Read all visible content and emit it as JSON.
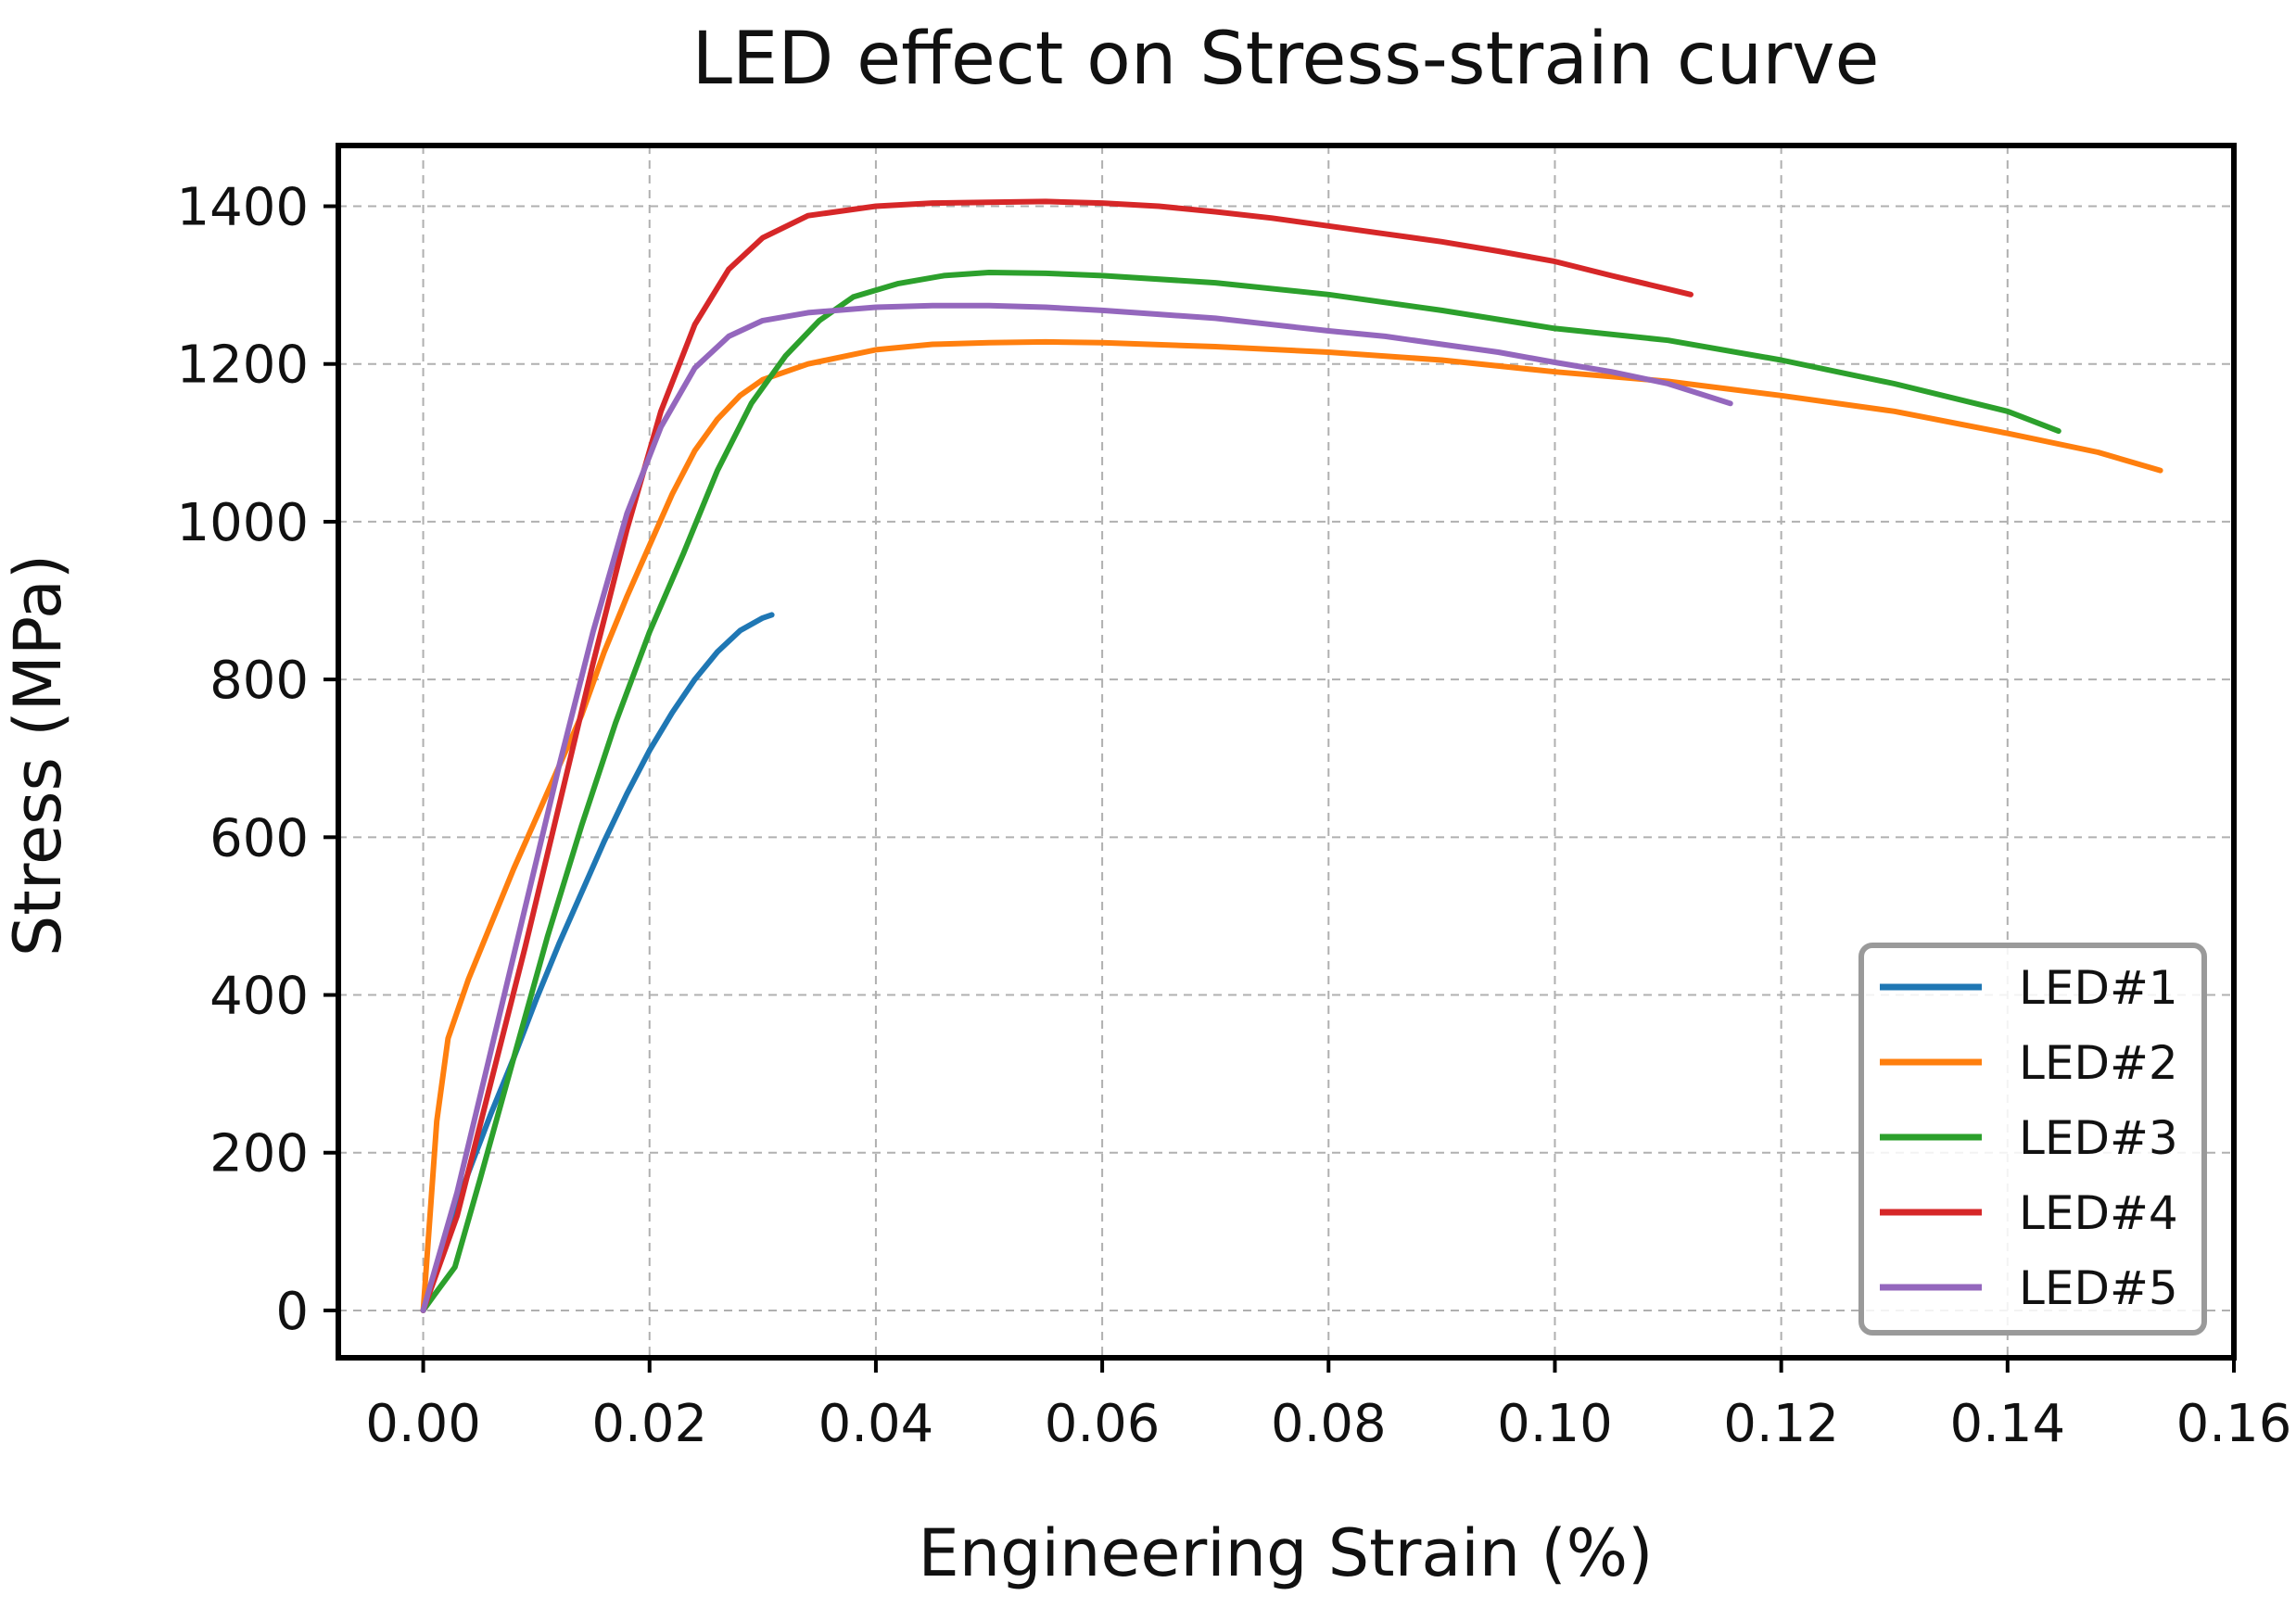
{
  "chart_data": {
    "type": "line",
    "title": "LED effect on Stress-strain curve",
    "xlabel": "Engineering Strain (%)",
    "ylabel": "Stress (MPa)",
    "xlim": [
      -0.0075,
      0.16
    ],
    "ylim": [
      -60,
      1477
    ],
    "xticks": [
      0.0,
      0.02,
      0.04,
      0.06,
      0.08,
      0.1,
      0.12,
      0.14,
      0.16
    ],
    "xtick_labels": [
      "0.00",
      "0.02",
      "0.04",
      "0.06",
      "0.08",
      "0.10",
      "0.12",
      "0.14",
      "0.16"
    ],
    "yticks": [
      0,
      200,
      400,
      600,
      800,
      1000,
      1200,
      1400
    ],
    "ytick_labels": [
      "0",
      "200",
      "400",
      "600",
      "800",
      "1000",
      "1200",
      "1400"
    ],
    "grid": true,
    "legend_position": "lower-right",
    "series": [
      {
        "name": "LED#1",
        "color": "#1f77b4",
        "points": [
          [
            0.0,
            0
          ],
          [
            0.002,
            95
          ],
          [
            0.004,
            175
          ],
          [
            0.006,
            250
          ],
          [
            0.008,
            320
          ],
          [
            0.01,
            395
          ],
          [
            0.012,
            465
          ],
          [
            0.014,
            530
          ],
          [
            0.016,
            595
          ],
          [
            0.018,
            655
          ],
          [
            0.02,
            710
          ],
          [
            0.022,
            758
          ],
          [
            0.024,
            800
          ],
          [
            0.026,
            835
          ],
          [
            0.028,
            862
          ],
          [
            0.03,
            878
          ],
          [
            0.0308,
            882
          ]
        ]
      },
      {
        "name": "LED#2",
        "color": "#ff7f0e",
        "points": [
          [
            0.0,
            0
          ],
          [
            0.0012,
            240
          ],
          [
            0.0022,
            345
          ],
          [
            0.004,
            420
          ],
          [
            0.006,
            490
          ],
          [
            0.008,
            560
          ],
          [
            0.01,
            625
          ],
          [
            0.012,
            690
          ],
          [
            0.014,
            755
          ],
          [
            0.016,
            835
          ],
          [
            0.018,
            905
          ],
          [
            0.02,
            970
          ],
          [
            0.022,
            1035
          ],
          [
            0.024,
            1090
          ],
          [
            0.026,
            1130
          ],
          [
            0.028,
            1160
          ],
          [
            0.03,
            1180
          ],
          [
            0.034,
            1200
          ],
          [
            0.04,
            1218
          ],
          [
            0.045,
            1225
          ],
          [
            0.05,
            1227
          ],
          [
            0.055,
            1228
          ],
          [
            0.06,
            1227
          ],
          [
            0.07,
            1222
          ],
          [
            0.08,
            1215
          ],
          [
            0.09,
            1205
          ],
          [
            0.1,
            1190
          ],
          [
            0.11,
            1178
          ],
          [
            0.12,
            1160
          ],
          [
            0.13,
            1140
          ],
          [
            0.14,
            1112
          ],
          [
            0.148,
            1088
          ],
          [
            0.1535,
            1065
          ]
        ]
      },
      {
        "name": "LED#3",
        "color": "#2ca02c",
        "points": [
          [
            0.0,
            0
          ],
          [
            0.001,
            20
          ],
          [
            0.0028,
            55
          ],
          [
            0.005,
            165
          ],
          [
            0.008,
            320
          ],
          [
            0.011,
            475
          ],
          [
            0.014,
            615
          ],
          [
            0.017,
            745
          ],
          [
            0.02,
            860
          ],
          [
            0.023,
            960
          ],
          [
            0.026,
            1065
          ],
          [
            0.029,
            1150
          ],
          [
            0.032,
            1210
          ],
          [
            0.035,
            1255
          ],
          [
            0.038,
            1285
          ],
          [
            0.042,
            1302
          ],
          [
            0.046,
            1312
          ],
          [
            0.05,
            1316
          ],
          [
            0.055,
            1315
          ],
          [
            0.06,
            1312
          ],
          [
            0.07,
            1303
          ],
          [
            0.08,
            1288
          ],
          [
            0.09,
            1268
          ],
          [
            0.1,
            1245
          ],
          [
            0.11,
            1230
          ],
          [
            0.12,
            1205
          ],
          [
            0.13,
            1175
          ],
          [
            0.14,
            1140
          ],
          [
            0.1445,
            1115
          ]
        ]
      },
      {
        "name": "LED#4",
        "color": "#d62728",
        "points": [
          [
            0.0,
            0
          ],
          [
            0.003,
            120
          ],
          [
            0.006,
            290
          ],
          [
            0.009,
            460
          ],
          [
            0.012,
            640
          ],
          [
            0.015,
            820
          ],
          [
            0.018,
            990
          ],
          [
            0.021,
            1140
          ],
          [
            0.024,
            1250
          ],
          [
            0.027,
            1320
          ],
          [
            0.03,
            1360
          ],
          [
            0.034,
            1388
          ],
          [
            0.04,
            1400
          ],
          [
            0.045,
            1404
          ],
          [
            0.05,
            1405
          ],
          [
            0.055,
            1406
          ],
          [
            0.06,
            1404
          ],
          [
            0.065,
            1400
          ],
          [
            0.07,
            1393
          ],
          [
            0.075,
            1385
          ],
          [
            0.08,
            1375
          ],
          [
            0.085,
            1365
          ],
          [
            0.09,
            1355
          ],
          [
            0.095,
            1343
          ],
          [
            0.1,
            1330
          ],
          [
            0.105,
            1312
          ],
          [
            0.11,
            1295
          ],
          [
            0.112,
            1288
          ]
        ]
      },
      {
        "name": "LED#5",
        "color": "#9467bd",
        "points": [
          [
            0.0,
            0
          ],
          [
            0.003,
            150
          ],
          [
            0.006,
            330
          ],
          [
            0.009,
            510
          ],
          [
            0.012,
            690
          ],
          [
            0.015,
            860
          ],
          [
            0.018,
            1010
          ],
          [
            0.021,
            1120
          ],
          [
            0.024,
            1195
          ],
          [
            0.027,
            1235
          ],
          [
            0.03,
            1255
          ],
          [
            0.034,
            1265
          ],
          [
            0.04,
            1272
          ],
          [
            0.045,
            1274
          ],
          [
            0.05,
            1274
          ],
          [
            0.055,
            1272
          ],
          [
            0.06,
            1268
          ],
          [
            0.065,
            1263
          ],
          [
            0.07,
            1258
          ],
          [
            0.075,
            1250
          ],
          [
            0.08,
            1242
          ],
          [
            0.085,
            1235
          ],
          [
            0.09,
            1225
          ],
          [
            0.095,
            1215
          ],
          [
            0.1,
            1202
          ],
          [
            0.105,
            1190
          ],
          [
            0.11,
            1175
          ],
          [
            0.1155,
            1150
          ]
        ]
      }
    ]
  }
}
